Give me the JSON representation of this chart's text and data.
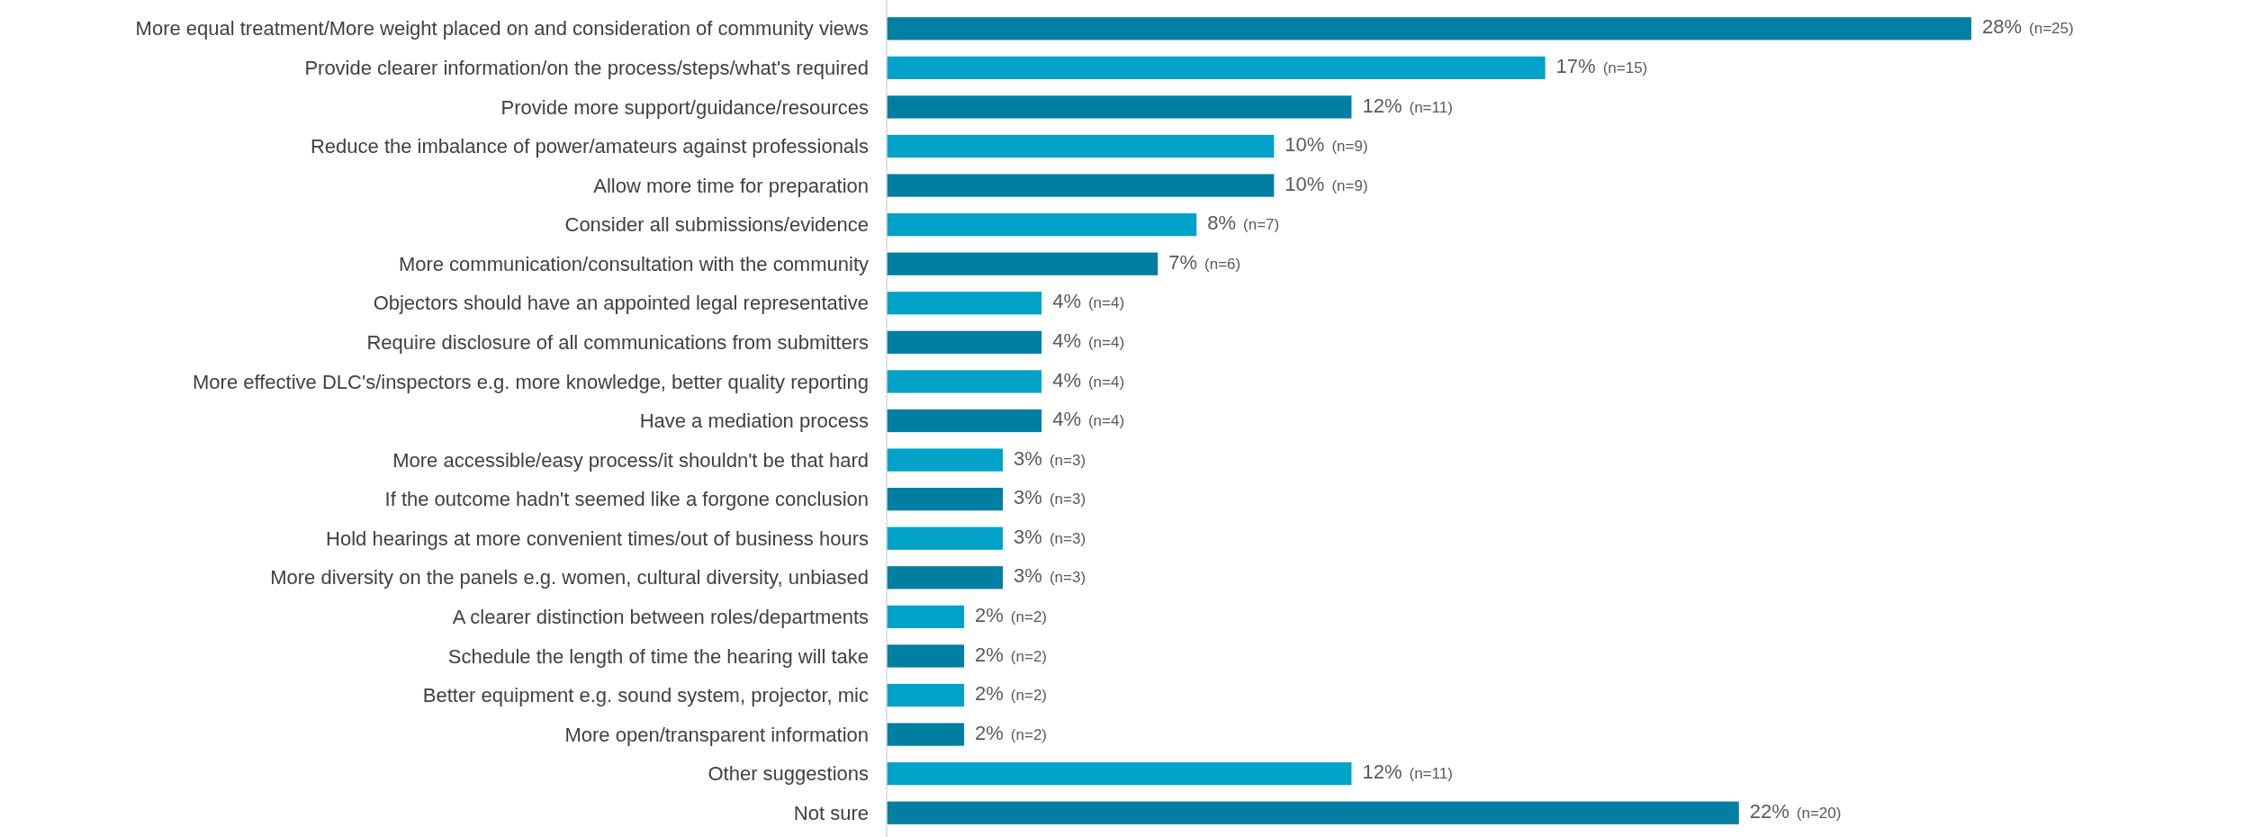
{
  "chart_data": {
    "type": "bar",
    "orientation": "horizontal",
    "categories": [
      "More equal treatment/More weight placed on and consideration of community views",
      "Provide clearer information/on the process/steps/what's required",
      "Provide more support/guidance/resources",
      "Reduce the imbalance of power/amateurs against professionals",
      "Allow more time for preparation",
      "Consider all submissions/evidence",
      "More communication/consultation with the community",
      "Objectors should have an appointed legal representative",
      "Require disclosure of all communications from submitters",
      "More effective DLC's/inspectors  e.g. more knowledge, better quality reporting",
      "Have a mediation process",
      "More accessible/easy process/it shouldn't be that hard",
      "If the outcome hadn't seemed like a forgone conclusion",
      "Hold hearings at more convenient times/out of business hours",
      "More diversity on the panels e.g. women, cultural diversity, unbiased",
      "A clearer distinction between roles/departments",
      "Schedule the length of time the hearing will take",
      "Better equipment e.g. sound system, projector, mic",
      "More open/transparent information",
      "Other suggestions",
      "Not sure"
    ],
    "values": [
      28,
      17,
      12,
      10,
      10,
      8,
      7,
      4,
      4,
      4,
      4,
      3,
      3,
      3,
      3,
      2,
      2,
      2,
      2,
      12,
      22
    ],
    "colors": [
      "#007fa3",
      "#00a2c7",
      "#007fa3",
      "#00a2c7",
      "#007fa3",
      "#00a2c7",
      "#007fa3",
      "#00a2c7",
      "#007fa3",
      "#00a2c7",
      "#007fa3",
      "#00a2c7",
      "#007fa3",
      "#00a2c7",
      "#007fa3",
      "#00a2c7",
      "#007fa3",
      "#00a2c7",
      "#007fa3",
      "#00a2c7",
      "#007fa3"
    ],
    "value_labels": [
      "28% (n=25)",
      "17% (n=15)",
      "12% (n=11)",
      "10% (n=9)",
      "10% (n=9)",
      "8% (n=7)",
      "7% (n=6)",
      "4% (n=4)",
      "4% (n=4)",
      "4% (n=4)",
      "4% (n=4)",
      "3% (n=3)",
      "3% (n=3)",
      "3% (n=3)",
      "3% (n=3)",
      "2% (n=2)",
      "2% (n=2)",
      "2% (n=2)",
      "2% (n=2)",
      "12% (n=11)",
      "22% (n=20)"
    ]
  }
}
